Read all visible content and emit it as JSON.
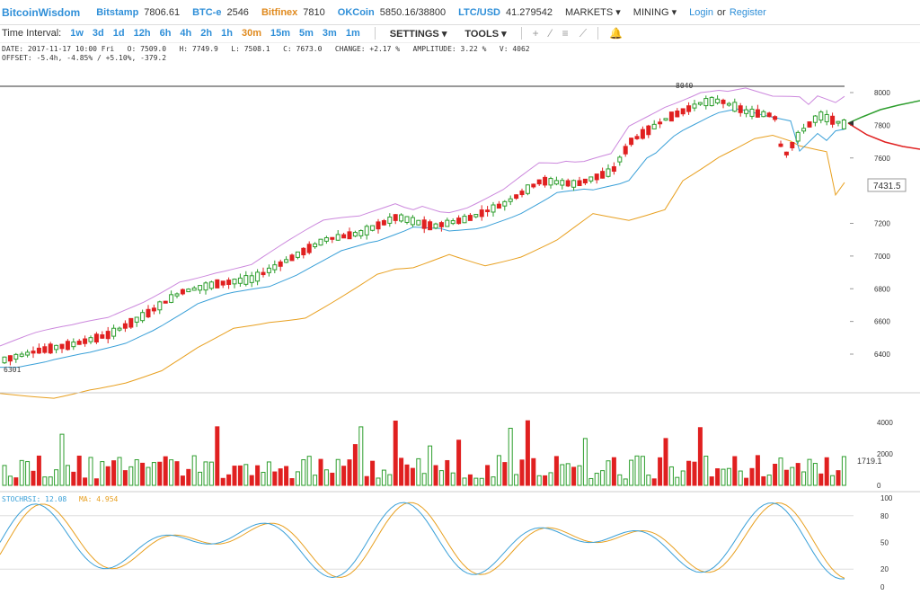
{
  "header": {
    "brand": "BitcoinWisdom",
    "exchanges": [
      {
        "name": "Bitstamp",
        "price": "7806.61",
        "color": "#2f8fd8"
      },
      {
        "name": "BTC-e",
        "price": "2546",
        "color": "#2f8fd8"
      },
      {
        "name": "Bitfinex",
        "price": "7810",
        "color": "#e08a1e"
      },
      {
        "name": "OKCoin",
        "price": "5850.16/38800",
        "color": "#2f8fd8"
      },
      {
        "name": "LTC/USD",
        "price": "41.279542",
        "color": "#2f8fd8"
      }
    ],
    "markets_label": "MARKETS",
    "mining_label": "MINING",
    "login_label": "Login",
    "or_label": "or",
    "register_label": "Register"
  },
  "toolbar": {
    "time_interval_label": "Time Interval:",
    "intervals": [
      "1w",
      "3d",
      "1d",
      "12h",
      "6h",
      "4h",
      "2h",
      "1h",
      "30m",
      "15m",
      "5m",
      "3m",
      "1m"
    ],
    "active_interval": "30m",
    "settings_label": "SETTINGS",
    "tools_label": "TOOLS"
  },
  "info": {
    "line1": "DATE: 2017-11-17 10:00 Fri   O: 7509.0   H: 7749.9   L: 7508.1   C: 7673.0   CHANGE: +2.17 %   AMPLITUDE: 3.22 %   V: 4062",
    "line2": "OFFSET: -5.4h, -4.85% / +5.10%, -379.2"
  },
  "chart": {
    "price_ticks": [
      "8000",
      "7800",
      "7600",
      "7200",
      "7000",
      "6800",
      "6600",
      "6400"
    ],
    "high_label": "8040",
    "low_label": "6301",
    "current_price": "7431.5",
    "volume_ticks": [
      "4000",
      "2000",
      "0"
    ],
    "current_volume": "1719.1",
    "stoch_label": "STOCHRSI: 12.08",
    "ma_label": "MA: 4.954",
    "stoch_ticks": [
      "100",
      "80",
      "50",
      "20",
      "0"
    ],
    "colors": {
      "up": "#2e9e2e",
      "down": "#e02020",
      "ema_fast": "#3aa0d8",
      "ema_slow": "#e8a020",
      "boll": "#cc88dd",
      "stoch": "#3aa0d8",
      "ma": "#e8a020"
    }
  }
}
